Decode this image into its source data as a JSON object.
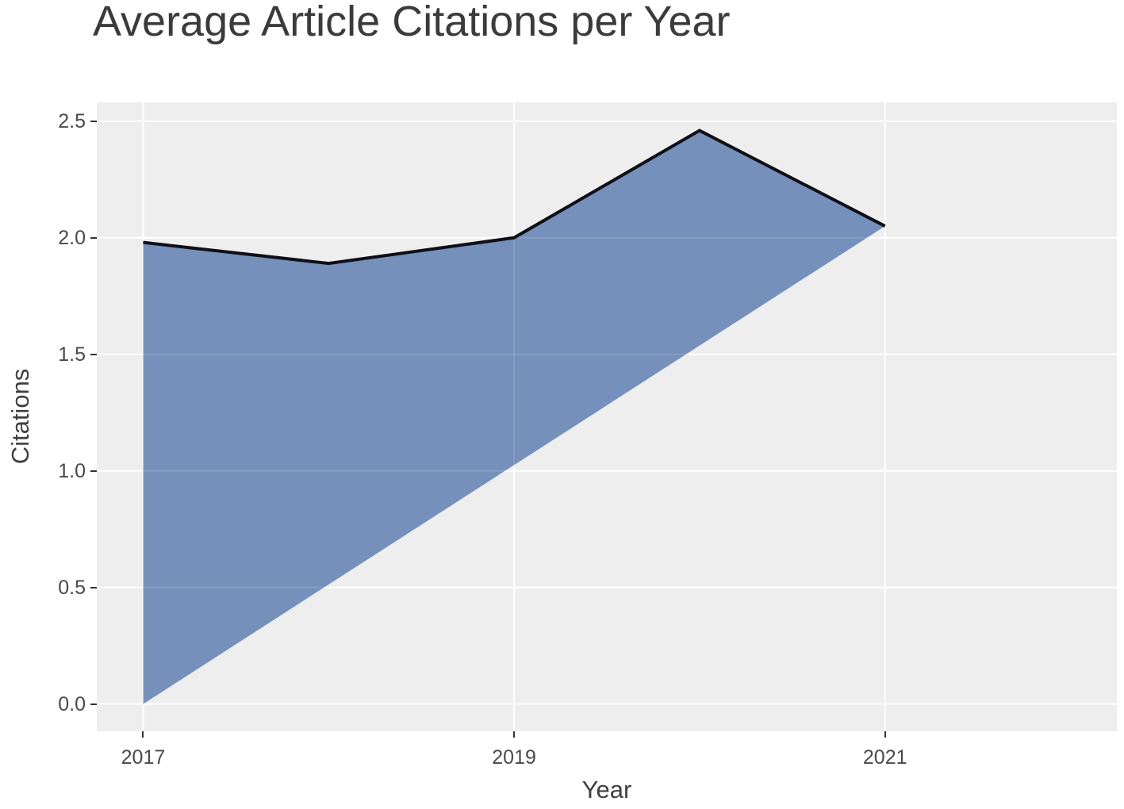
{
  "chart_data": {
    "type": "area",
    "title": "Average Article Citations per Year",
    "xlabel": "Year",
    "ylabel": "Citations",
    "x": [
      2017,
      2018,
      2019,
      2020,
      2021
    ],
    "series": [
      {
        "name": "Average article citations per year",
        "values": [
          1.98,
          1.89,
          2.0,
          2.46,
          2.05
        ]
      }
    ],
    "area_close_point": [
      2017,
      0.0
    ],
    "x_ticks": {
      "values": [
        2017,
        2019,
        2021
      ],
      "labels": [
        "2017",
        "2019",
        "2021"
      ]
    },
    "y_ticks": {
      "values": [
        0.0,
        0.5,
        1.0,
        1.5,
        2.0,
        2.5
      ],
      "labels": [
        "0.0",
        "0.5",
        "1.0",
        "1.5",
        "2.0",
        "2.5"
      ]
    },
    "xlim": [
      2016.75,
      2022.25
    ],
    "ylim": [
      -0.117,
      2.581
    ],
    "grid": {
      "major": true,
      "minor": false,
      "color": "#ffffff"
    },
    "legend": "none",
    "colors": {
      "fill": "#7590ba",
      "line": "#0f0f18",
      "panel_bg": "#eeeeee",
      "page_bg": "#ffffff",
      "gridline": "#ffffff",
      "tick_mark": "#333333",
      "tick_label": "#4a4a4a",
      "axis_title": "#3f3f3f",
      "title": "#3b3b3b"
    }
  }
}
